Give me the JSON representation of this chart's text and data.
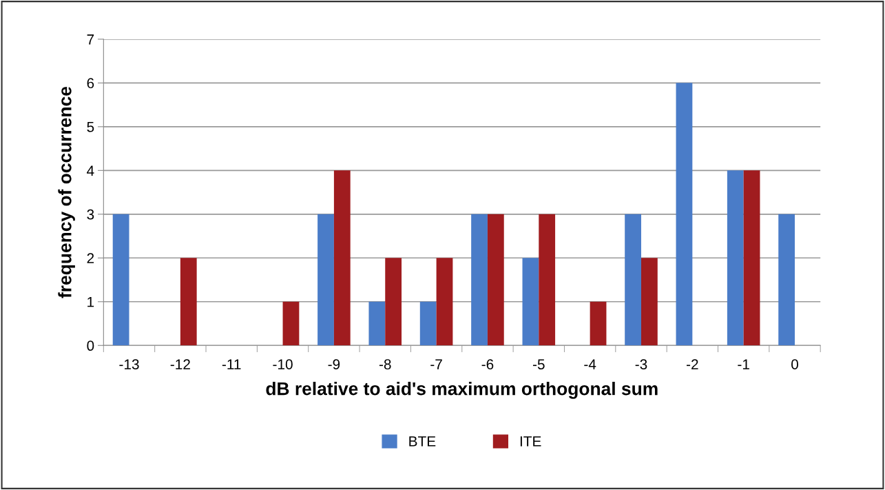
{
  "chart_data": {
    "type": "bar",
    "xlabel": "dB relative to aid's maximum orthogonal sum",
    "ylabel": "frequency of occurrence",
    "categories": [
      "-13",
      "-12",
      "-11",
      "-10",
      "-9",
      "-8",
      "-7",
      "-6",
      "-5",
      "-4",
      "-3",
      "-2",
      "-1",
      "0"
    ],
    "series": [
      {
        "name": "BTE",
        "color": "#4a7cc8",
        "values": [
          3,
          0,
          0,
          0,
          3,
          1,
          1,
          3,
          2,
          0,
          3,
          6,
          4,
          3
        ]
      },
      {
        "name": "ITE",
        "color": "#a01c1f",
        "values": [
          0,
          2,
          0,
          1,
          4,
          2,
          2,
          3,
          3,
          1,
          2,
          0,
          4,
          0
        ]
      }
    ],
    "ylim": [
      0,
      7
    ],
    "yticks": [
      0,
      1,
      2,
      3,
      4,
      5,
      6,
      7
    ],
    "grid": "y",
    "legend": "bottom"
  }
}
